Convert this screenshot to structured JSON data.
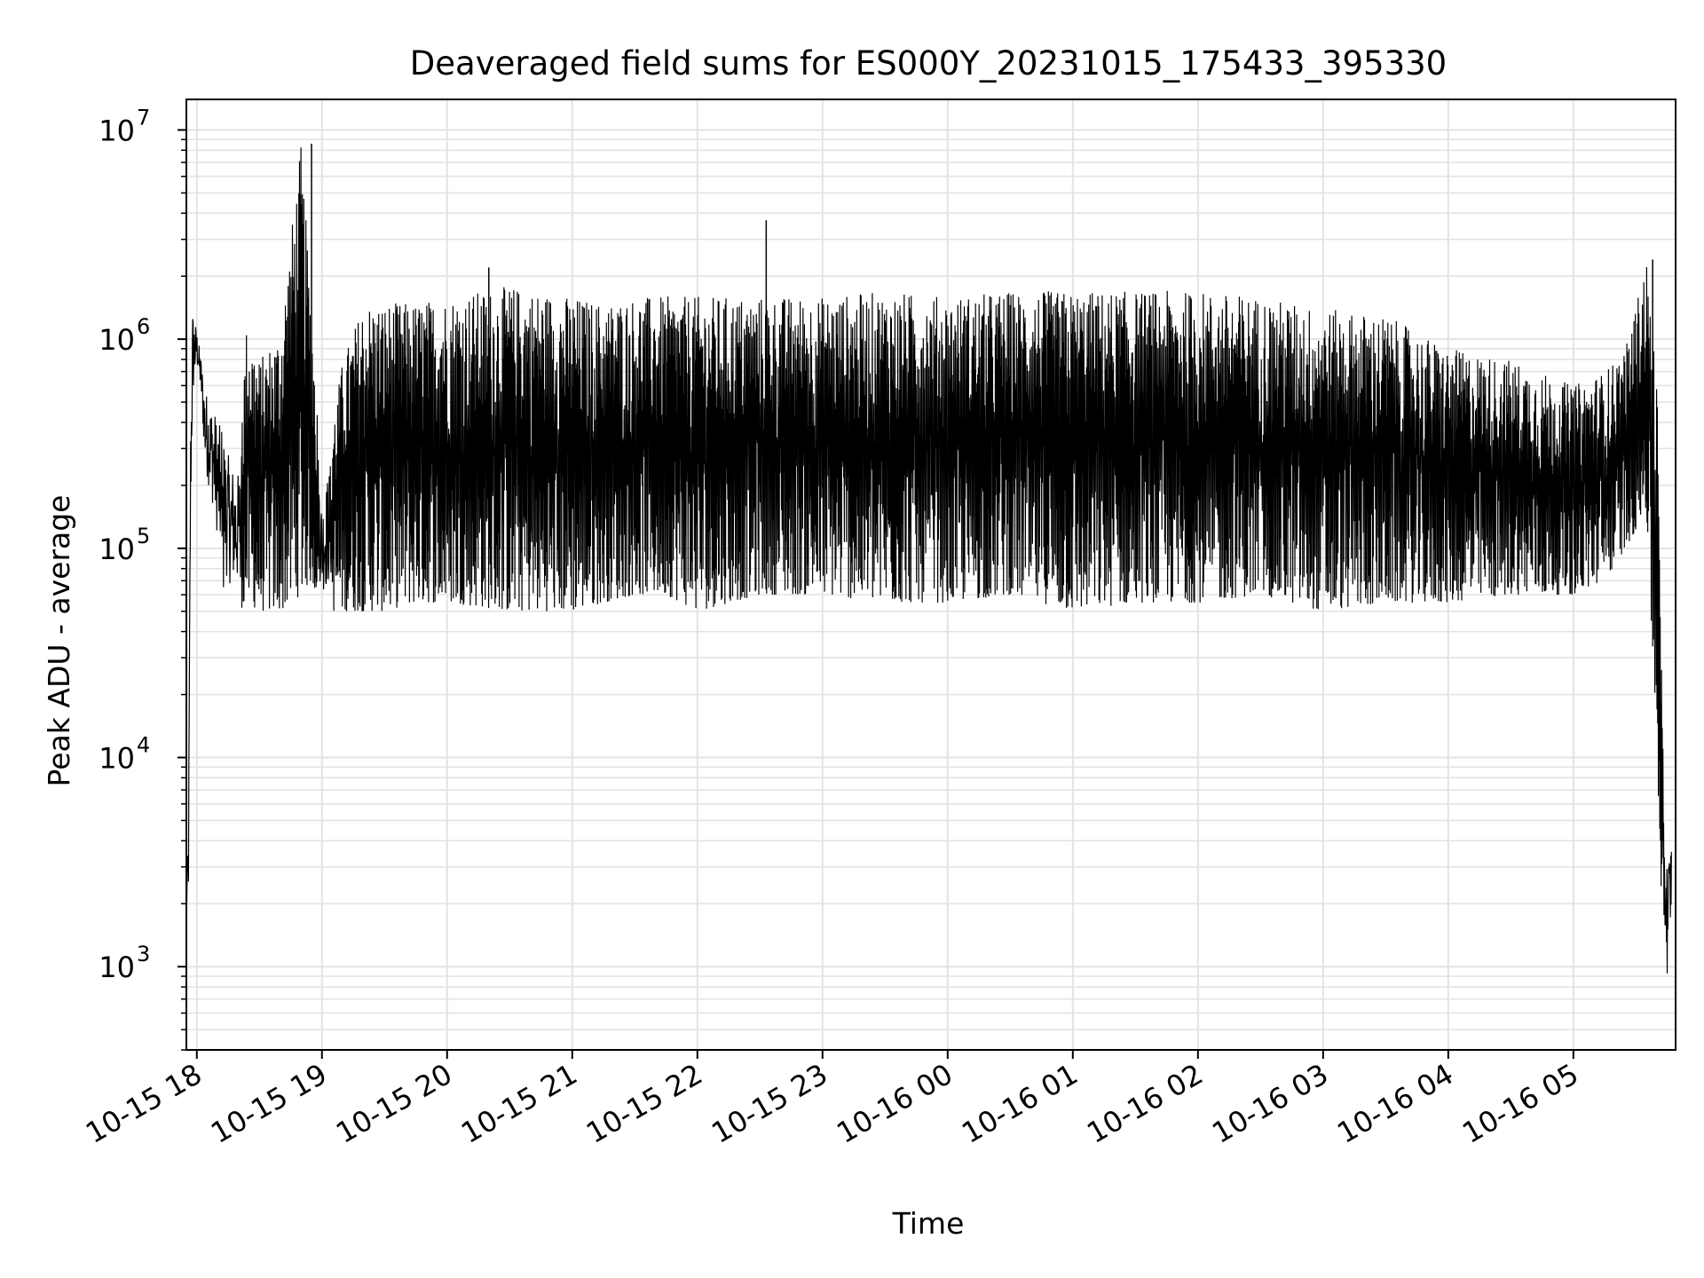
{
  "chart_data": {
    "type": "line",
    "title": "Deaveraged field sums for ES000Y_20231015_175433_395330",
    "xlabel": "Time",
    "ylabel": "Peak ADU - average",
    "y_scale": "log",
    "ylim": [
      400,
      14000000
    ],
    "xlim": [
      "2023-10-15 17:55",
      "2023-10-16 05:49"
    ],
    "grid": true,
    "line_color": "#000000",
    "x_ticks": [
      {
        "label": "10-15 18",
        "time": "2023-10-15 18:00"
      },
      {
        "label": "10-15 19",
        "time": "2023-10-15 19:00"
      },
      {
        "label": "10-15 20",
        "time": "2023-10-15 20:00"
      },
      {
        "label": "10-15 21",
        "time": "2023-10-15 21:00"
      },
      {
        "label": "10-15 22",
        "time": "2023-10-15 22:00"
      },
      {
        "label": "10-15 23",
        "time": "2023-10-15 23:00"
      },
      {
        "label": "10-16 00",
        "time": "2023-10-16 00:00"
      },
      {
        "label": "10-16 01",
        "time": "2023-10-16 01:00"
      },
      {
        "label": "10-16 02",
        "time": "2023-10-16 02:00"
      },
      {
        "label": "10-16 03",
        "time": "2023-10-16 03:00"
      },
      {
        "label": "10-16 04",
        "time": "2023-10-16 04:00"
      },
      {
        "label": "10-16 05",
        "time": "2023-10-16 05:00"
      }
    ],
    "y_ticks": [
      {
        "base": "10",
        "exp": "3",
        "value": 1000
      },
      {
        "base": "10",
        "exp": "4",
        "value": 10000
      },
      {
        "base": "10",
        "exp": "5",
        "value": 100000
      },
      {
        "base": "10",
        "exp": "6",
        "value": 1000000
      },
      {
        "base": "10",
        "exp": "7",
        "value": 10000000
      }
    ],
    "series": [
      {
        "style": "thin black line, dense variation between upper and lower envelopes",
        "x": [
          "2023-10-15 17:55",
          "2023-10-15 17:56",
          "2023-10-15 17:57",
          "2023-10-15 17:58",
          "2023-10-15 18:00",
          "2023-10-15 18:02",
          "2023-10-15 18:04",
          "2023-10-15 18:08",
          "2023-10-15 18:12",
          "2023-10-15 18:16",
          "2023-10-15 18:20",
          "2023-10-15 18:24",
          "2023-10-15 18:30",
          "2023-10-15 18:40",
          "2023-10-15 18:50",
          "2023-10-15 18:55",
          "2023-10-15 19:00",
          "2023-10-15 19:10",
          "2023-10-15 19:20",
          "2023-10-15 19:30",
          "2023-10-15 19:45",
          "2023-10-15 20:00",
          "2023-10-15 20:30",
          "2023-10-15 21:00",
          "2023-10-15 21:15",
          "2023-10-15 21:30",
          "2023-10-15 21:45",
          "2023-10-15 22:00",
          "2023-10-15 22:30",
          "2023-10-15 23:00",
          "2023-10-15 23:30",
          "2023-10-16 00:00",
          "2023-10-16 00:30",
          "2023-10-16 01:00",
          "2023-10-16 01:30",
          "2023-10-16 02:00",
          "2023-10-16 02:30",
          "2023-10-16 03:00",
          "2023-10-16 03:30",
          "2023-10-16 04:00",
          "2023-10-16 04:30",
          "2023-10-16 05:00",
          "2023-10-16 05:15",
          "2023-10-16 05:25",
          "2023-10-16 05:35",
          "2023-10-16 05:40",
          "2023-10-16 05:43",
          "2023-10-16 05:45",
          "2023-10-16 05:47"
        ],
        "y_upper": [
          3000,
          5000,
          500000,
          1800000,
          1200000,
          900000,
          700000,
          600000,
          500000,
          350000,
          300000,
          1200000,
          800000,
          1100000,
          8600000,
          1400000,
          200000,
          800000,
          1500000,
          1500000,
          1500000,
          1600000,
          1800000,
          1600000,
          1500000,
          1600000,
          1600000,
          1600000,
          1600000,
          1600000,
          1700000,
          1600000,
          1700000,
          1700000,
          1700000,
          1700000,
          1600000,
          1400000,
          1300000,
          900000,
          800000,
          600000,
          700000,
          900000,
          2400000,
          700000,
          10000,
          4000,
          5000
        ],
        "y_lower": [
          1400,
          1800,
          100000,
          400000,
          700000,
          500000,
          200000,
          120000,
          60000,
          50000,
          50000,
          55000,
          50000,
          50000,
          60000,
          70000,
          50000,
          50000,
          50000,
          50000,
          55000,
          55000,
          50000,
          50000,
          55000,
          60000,
          60000,
          50000,
          60000,
          60000,
          55000,
          55000,
          60000,
          50000,
          55000,
          55000,
          60000,
          50000,
          55000,
          55000,
          60000,
          60000,
          70000,
          100000,
          150000,
          10000,
          1200,
          700,
          1500
        ],
        "spikes": [
          {
            "x": "2023-10-15 18:55",
            "y": 8600000
          },
          {
            "x": "2023-10-15 20:20",
            "y": 2200000
          },
          {
            "x": "2023-10-15 22:33",
            "y": 3700000
          },
          {
            "x": "2023-10-16 05:38",
            "y": 2400000
          }
        ]
      }
    ]
  }
}
